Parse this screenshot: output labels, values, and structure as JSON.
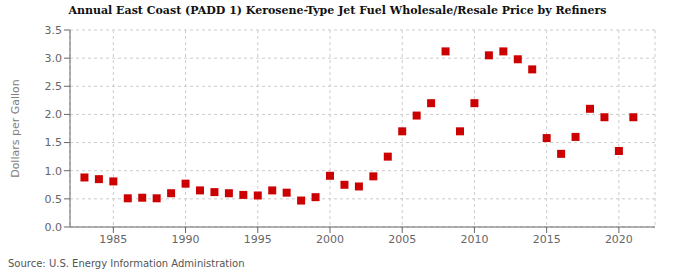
{
  "chart_data": {
    "type": "scatter",
    "title": "Annual East Coast (PADD 1) Kerosene-Type Jet Fuel Wholesale/Resale Price by Refiners",
    "ylabel": "Dollars per Gallon",
    "annotations": [
      "Source: U.S. Energy Information Administration"
    ],
    "color": "#cc0000",
    "marker": "square",
    "grid": true,
    "xlim": [
      1982,
      2022.5
    ],
    "ylim": [
      0.0,
      3.5
    ],
    "xticks": [
      1985,
      1990,
      1995,
      2000,
      2005,
      2010,
      2015,
      2020
    ],
    "yticks": [
      {
        "value": 0.0,
        "label": "0.0"
      },
      0.5,
      {
        "value": 1.0,
        "label": "1.0"
      },
      1.5,
      {
        "value": 2.0,
        "label": "2.0"
      },
      2.5,
      {
        "value": 3.0,
        "label": "3.0"
      },
      3.5
    ],
    "x": [
      1983,
      1984,
      1985,
      1986,
      1987,
      1988,
      1989,
      1990,
      1991,
      1992,
      1993,
      1994,
      1995,
      1996,
      1997,
      1998,
      1999,
      2000,
      2001,
      2002,
      2003,
      2004,
      2005,
      2006,
      2007,
      2008,
      2009,
      2010,
      2011,
      2012,
      2013,
      2014,
      2015,
      2016,
      2017,
      2018,
      2019,
      2020,
      2021
    ],
    "values": [
      0.88,
      0.85,
      0.81,
      0.51,
      0.52,
      0.51,
      0.6,
      0.77,
      0.65,
      0.62,
      0.6,
      0.57,
      0.56,
      0.65,
      0.61,
      0.47,
      0.53,
      0.91,
      0.75,
      0.72,
      0.9,
      1.25,
      1.7,
      1.98,
      2.2,
      3.12,
      1.7,
      2.2,
      3.05,
      3.12,
      2.98,
      2.8,
      1.58,
      1.3,
      1.6,
      2.1,
      1.95,
      1.35,
      1.95
    ]
  }
}
